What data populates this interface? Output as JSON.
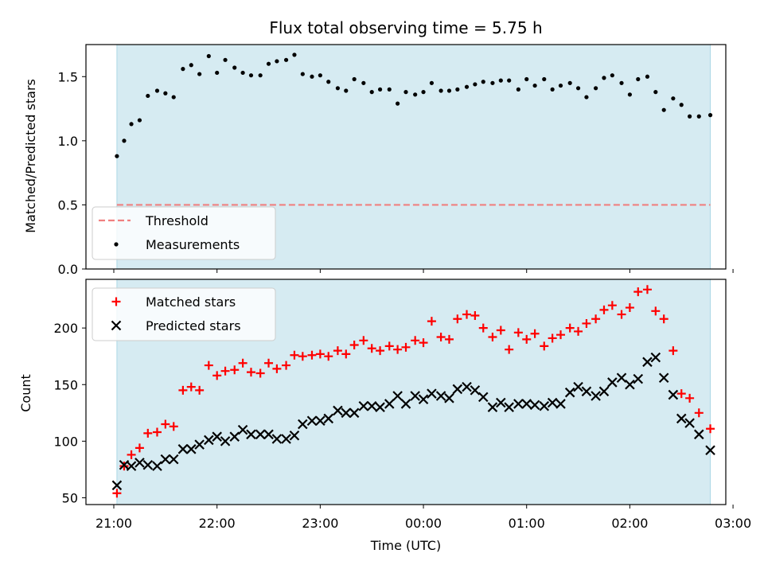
{
  "figure": {
    "title": "Flux total observing time = 5.75 h",
    "xlabel": "Time (UTC)",
    "x_ticks": [
      {
        "value": 21.0,
        "label": "21:00"
      },
      {
        "value": 22.0,
        "label": "22:00"
      },
      {
        "value": 23.0,
        "label": "23:00"
      },
      {
        "value": 24.0,
        "label": "00:00"
      },
      {
        "value": 25.0,
        "label": "01:00"
      },
      {
        "value": 26.0,
        "label": "02:00"
      },
      {
        "value": 27.0,
        "label": "03:00"
      }
    ],
    "xlim": [
      20.73,
      26.93
    ],
    "observing_window": [
      21.03,
      26.78
    ],
    "colors": {
      "window": "#add8e6",
      "threshold": "#f08080",
      "measurements": "#000000",
      "matched": "#ff0000",
      "predicted": "#000000"
    }
  },
  "chart_data": [
    {
      "type": "scatter",
      "title": "Flux total observing time = 5.75 h",
      "xlabel": "",
      "ylabel": "Matched/Predicted stars",
      "ylim": [
        0,
        1.75
      ],
      "y_ticks": [
        {
          "value": 0.0,
          "label": "0.0"
        },
        {
          "value": 0.5,
          "label": "0.5"
        },
        {
          "value": 1.0,
          "label": "1.0"
        },
        {
          "value": 1.5,
          "label": "1.5"
        }
      ],
      "legend": {
        "position": "lower-left",
        "entries": [
          "Threshold",
          "Measurements"
        ]
      },
      "threshold": {
        "name": "Threshold",
        "y": 0.5,
        "style": "dashed"
      },
      "series": [
        {
          "name": "Measurements",
          "marker": "dot",
          "x": [
            21.03,
            21.1,
            21.17,
            21.25,
            21.33,
            21.42,
            21.5,
            21.58,
            21.67,
            21.75,
            21.83,
            21.92,
            22.0,
            22.08,
            22.17,
            22.25,
            22.33,
            22.42,
            22.5,
            22.58,
            22.67,
            22.75,
            22.83,
            22.92,
            23.0,
            23.08,
            23.17,
            23.25,
            23.33,
            23.42,
            23.5,
            23.58,
            23.67,
            23.75,
            23.83,
            23.92,
            24.0,
            24.08,
            24.17,
            24.25,
            24.33,
            24.42,
            24.5,
            24.58,
            24.67,
            24.75,
            24.83,
            24.92,
            25.0,
            25.08,
            25.17,
            25.25,
            25.33,
            25.42,
            25.5,
            25.58,
            25.67,
            25.75,
            25.83,
            25.92,
            26.0,
            26.08,
            26.17,
            26.25,
            26.33,
            26.42,
            26.5,
            26.58,
            26.67,
            26.78
          ],
          "y": [
            0.88,
            1.0,
            1.13,
            1.16,
            1.35,
            1.39,
            1.37,
            1.34,
            1.56,
            1.59,
            1.52,
            1.66,
            1.53,
            1.63,
            1.57,
            1.53,
            1.51,
            1.51,
            1.6,
            1.62,
            1.63,
            1.67,
            1.52,
            1.5,
            1.51,
            1.46,
            1.41,
            1.39,
            1.48,
            1.45,
            1.38,
            1.4,
            1.4,
            1.29,
            1.38,
            1.36,
            1.38,
            1.45,
            1.39,
            1.39,
            1.4,
            1.42,
            1.44,
            1.46,
            1.45,
            1.47,
            1.47,
            1.4,
            1.48,
            1.43,
            1.48,
            1.4,
            1.43,
            1.45,
            1.41,
            1.34,
            1.41,
            1.49,
            1.51,
            1.45,
            1.36,
            1.48,
            1.5,
            1.38,
            1.24,
            1.33,
            1.28,
            1.19,
            1.19,
            1.2
          ]
        }
      ]
    },
    {
      "type": "scatter",
      "xlabel": "Time (UTC)",
      "ylabel": "Count",
      "ylim": [
        44,
        243
      ],
      "y_ticks": [
        {
          "value": 50,
          "label": "50"
        },
        {
          "value": 100,
          "label": "100"
        },
        {
          "value": 150,
          "label": "150"
        },
        {
          "value": 200,
          "label": "200"
        }
      ],
      "legend": {
        "position": "upper-left",
        "entries": [
          "Matched stars",
          "Predicted stars"
        ]
      },
      "series": [
        {
          "name": "Matched stars",
          "marker": "plus",
          "x": [
            21.03,
            21.1,
            21.17,
            21.25,
            21.33,
            21.42,
            21.5,
            21.58,
            21.67,
            21.75,
            21.83,
            21.92,
            22.0,
            22.08,
            22.17,
            22.25,
            22.33,
            22.42,
            22.5,
            22.58,
            22.67,
            22.75,
            22.83,
            22.92,
            23.0,
            23.08,
            23.17,
            23.25,
            23.33,
            23.42,
            23.5,
            23.58,
            23.67,
            23.75,
            23.83,
            23.92,
            24.0,
            24.08,
            24.17,
            24.25,
            24.33,
            24.42,
            24.5,
            24.58,
            24.67,
            24.75,
            24.83,
            24.92,
            25.0,
            25.08,
            25.17,
            25.25,
            25.33,
            25.42,
            25.5,
            25.58,
            25.67,
            25.75,
            25.83,
            25.92,
            26.0,
            26.08,
            26.17,
            26.25,
            26.33,
            26.42,
            26.5,
            26.58,
            26.67,
            26.78
          ],
          "y": [
            54,
            78,
            88,
            94,
            107,
            108,
            115,
            113,
            145,
            148,
            145,
            167,
            158,
            162,
            163,
            169,
            161,
            160,
            169,
            164,
            167,
            176,
            175,
            176,
            177,
            175,
            180,
            177,
            185,
            189,
            182,
            180,
            184,
            181,
            183,
            189,
            187,
            206,
            192,
            190,
            208,
            212,
            211,
            200,
            192,
            198,
            181,
            196,
            190,
            195,
            184,
            191,
            194,
            200,
            197,
            204,
            208,
            216,
            220,
            212,
            218,
            232,
            234,
            215,
            208,
            180,
            142,
            138,
            125,
            111
          ]
        },
        {
          "name": "Predicted stars",
          "marker": "x",
          "x": [
            21.03,
            21.1,
            21.17,
            21.25,
            21.33,
            21.42,
            21.5,
            21.58,
            21.67,
            21.75,
            21.83,
            21.92,
            22.0,
            22.08,
            22.17,
            22.25,
            22.33,
            22.42,
            22.5,
            22.58,
            22.67,
            22.75,
            22.83,
            22.92,
            23.0,
            23.08,
            23.17,
            23.25,
            23.33,
            23.42,
            23.5,
            23.58,
            23.67,
            23.75,
            23.83,
            23.92,
            24.0,
            24.08,
            24.17,
            24.25,
            24.33,
            24.42,
            24.5,
            24.58,
            24.67,
            24.75,
            24.83,
            24.92,
            25.0,
            25.08,
            25.17,
            25.25,
            25.33,
            25.42,
            25.5,
            25.58,
            25.67,
            25.75,
            25.83,
            25.92,
            26.0,
            26.08,
            26.17,
            26.25,
            26.33,
            26.42,
            26.5,
            26.58,
            26.67,
            26.78
          ],
          "y": [
            61,
            79,
            78,
            81,
            79,
            78,
            84,
            84,
            93,
            93,
            97,
            101,
            104,
            100,
            104,
            110,
            106,
            106,
            106,
            102,
            102,
            105,
            115,
            118,
            118,
            120,
            127,
            125,
            125,
            131,
            131,
            130,
            133,
            140,
            133,
            140,
            137,
            142,
            140,
            138,
            146,
            148,
            145,
            139,
            130,
            134,
            130,
            133,
            133,
            132,
            131,
            134,
            133,
            143,
            148,
            144,
            140,
            144,
            152,
            156,
            150,
            155,
            170,
            174,
            156,
            141,
            120,
            116,
            106,
            92
          ]
        }
      ]
    }
  ]
}
